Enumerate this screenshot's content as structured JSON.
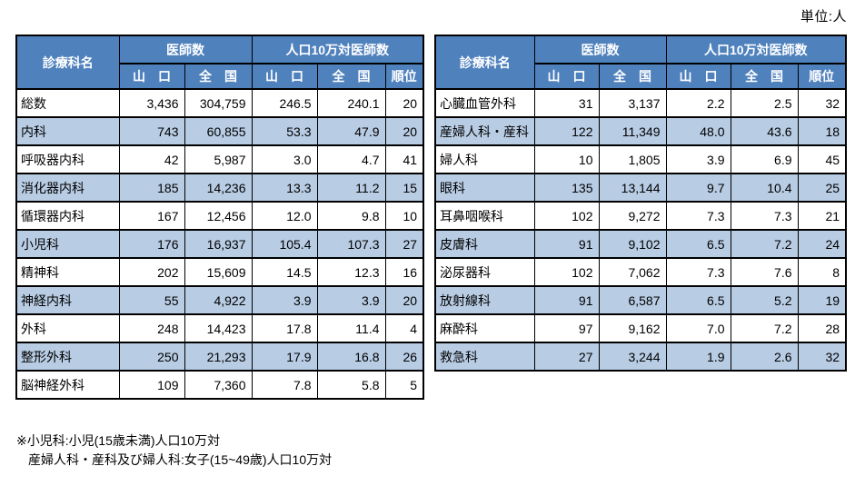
{
  "unit_label": "単位:人",
  "header": {
    "dept": "診療科名",
    "doctors": "医師数",
    "per100k": "人口10万対医師数",
    "yamaguchi": "山　口",
    "national": "全　国",
    "rank": "順位"
  },
  "left_table": {
    "rows": [
      {
        "name": "総数",
        "doc_y": "3,436",
        "doc_n": "304,759",
        "per_y": "246.5",
        "per_n": "240.1",
        "rank": "20"
      },
      {
        "name": "内科",
        "doc_y": "743",
        "doc_n": "60,855",
        "per_y": "53.3",
        "per_n": "47.9",
        "rank": "20"
      },
      {
        "name": "呼吸器内科",
        "doc_y": "42",
        "doc_n": "5,987",
        "per_y": "3.0",
        "per_n": "4.7",
        "rank": "41"
      },
      {
        "name": "消化器内科",
        "doc_y": "185",
        "doc_n": "14,236",
        "per_y": "13.3",
        "per_n": "11.2",
        "rank": "15"
      },
      {
        "name": "循環器内科",
        "doc_y": "167",
        "doc_n": "12,456",
        "per_y": "12.0",
        "per_n": "9.8",
        "rank": "10"
      },
      {
        "name": "小児科",
        "doc_y": "176",
        "doc_n": "16,937",
        "per_y": "105.4",
        "per_n": "107.3",
        "rank": "27"
      },
      {
        "name": "精神科",
        "doc_y": "202",
        "doc_n": "15,609",
        "per_y": "14.5",
        "per_n": "12.3",
        "rank": "16"
      },
      {
        "name": "神経内科",
        "doc_y": "55",
        "doc_n": "4,922",
        "per_y": "3.9",
        "per_n": "3.9",
        "rank": "20"
      },
      {
        "name": "外科",
        "doc_y": "248",
        "doc_n": "14,423",
        "per_y": "17.8",
        "per_n": "11.4",
        "rank": "4"
      },
      {
        "name": "整形外科",
        "doc_y": "250",
        "doc_n": "21,293",
        "per_y": "17.9",
        "per_n": "16.8",
        "rank": "26"
      },
      {
        "name": "脳神経外科",
        "doc_y": "109",
        "doc_n": "7,360",
        "per_y": "7.8",
        "per_n": "5.8",
        "rank": "5"
      }
    ]
  },
  "right_table": {
    "rows": [
      {
        "name": "心臓血管外科",
        "doc_y": "31",
        "doc_n": "3,137",
        "per_y": "2.2",
        "per_n": "2.5",
        "rank": "32"
      },
      {
        "name": "産婦人科・産科",
        "doc_y": "122",
        "doc_n": "11,349",
        "per_y": "48.0",
        "per_n": "43.6",
        "rank": "18"
      },
      {
        "name": "婦人科",
        "doc_y": "10",
        "doc_n": "1,805",
        "per_y": "3.9",
        "per_n": "6.9",
        "rank": "45"
      },
      {
        "name": "眼科",
        "doc_y": "135",
        "doc_n": "13,144",
        "per_y": "9.7",
        "per_n": "10.4",
        "rank": "25"
      },
      {
        "name": "耳鼻咽喉科",
        "doc_y": "102",
        "doc_n": "9,272",
        "per_y": "7.3",
        "per_n": "7.3",
        "rank": "21"
      },
      {
        "name": "皮膚科",
        "doc_y": "91",
        "doc_n": "9,102",
        "per_y": "6.5",
        "per_n": "7.2",
        "rank": "24"
      },
      {
        "name": "泌尿器科",
        "doc_y": "102",
        "doc_n": "7,062",
        "per_y": "7.3",
        "per_n": "7.6",
        "rank": "8"
      },
      {
        "name": "放射線科",
        "doc_y": "91",
        "doc_n": "6,587",
        "per_y": "6.5",
        "per_n": "5.2",
        "rank": "19"
      },
      {
        "name": "麻酔科",
        "doc_y": "97",
        "doc_n": "9,162",
        "per_y": "7.0",
        "per_n": "7.2",
        "rank": "28"
      },
      {
        "name": "救急科",
        "doc_y": "27",
        "doc_n": "3,244",
        "per_y": "1.9",
        "per_n": "2.6",
        "rank": "32"
      }
    ]
  },
  "footnotes": [
    "※小児科:小児(15歳未満)人口10万対",
    "産婦人科・産科及び婦人科:女子(15~49歳)人口10万対"
  ],
  "colors": {
    "header_bg": "#4F81BD",
    "stripe_bg": "#B8CCE4",
    "border": "#000000"
  }
}
